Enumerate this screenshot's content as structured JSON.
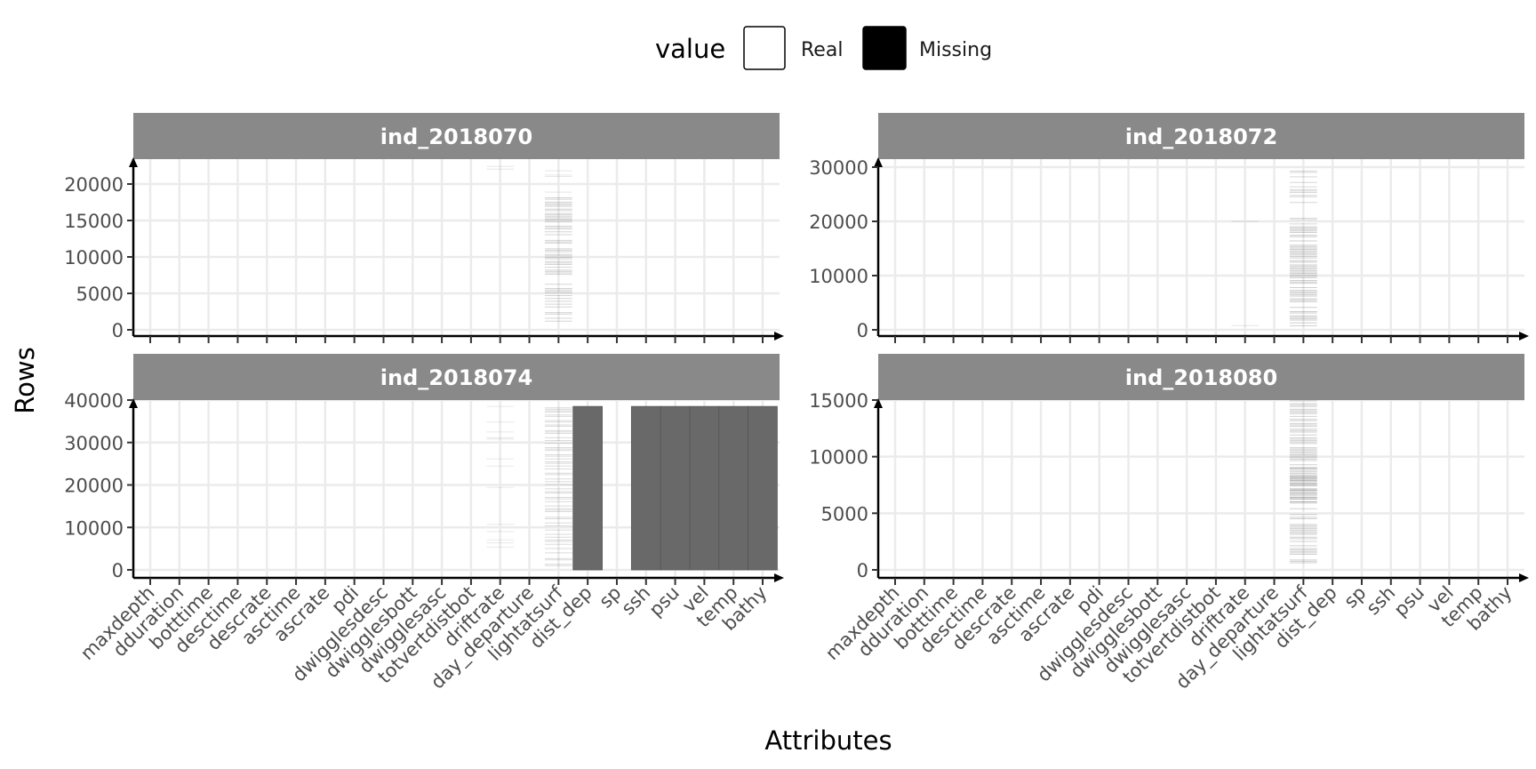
{
  "chart_data": {
    "type": "heatmap",
    "xlabel": "Attributes",
    "ylabel": "Rows",
    "legend": {
      "title": "value",
      "position": "top",
      "entries": [
        {
          "label": "Real",
          "color": "#ffffff"
        },
        {
          "label": "Missing",
          "color": "#000000"
        }
      ]
    },
    "attributes": [
      "maxdepth",
      "dduration",
      "botttime",
      "desctime",
      "descrate",
      "asctime",
      "ascrate",
      "pdi",
      "dwigglesdesc",
      "dwigglesbott",
      "dwigglesasc",
      "totvertdistbot",
      "driftrate",
      "day_departure",
      "lightatsurf",
      "dist_dep",
      "sp",
      "ssh",
      "psu",
      "vel",
      "temp",
      "bathy"
    ],
    "grid": true,
    "panels": [
      {
        "title": "ind_2018070",
        "rows": 22600,
        "ylim": [
          0,
          23000
        ],
        "yticks": [
          0,
          5000,
          10000,
          15000,
          20000
        ],
        "missing": [
          {
            "attribute": "driftrate",
            "ranges": [
              [
                21500,
                22600
              ]
            ],
            "intensity": 0.08
          },
          {
            "attribute": "lightatsurf",
            "ranges": [
              [
                1000,
                18300
              ]
            ],
            "intensity": 0.35
          },
          {
            "attribute": "lightatsurf",
            "ranges": [
              [
                18300,
                22600
              ]
            ],
            "intensity": 0.06
          }
        ]
      },
      {
        "title": "ind_2018072",
        "rows": 30000,
        "ylim": [
          0,
          30000
        ],
        "yticks": [
          0,
          10000,
          20000,
          30000
        ],
        "missing": [
          {
            "attribute": "driftrate",
            "ranges": [
              [
                0,
                1500
              ],
              [
                18800,
                20000
              ]
            ],
            "intensity": 0.06
          },
          {
            "attribute": "lightatsurf",
            "ranges": [
              [
                500,
                19000
              ]
            ],
            "intensity": 0.45
          },
          {
            "attribute": "lightatsurf",
            "ranges": [
              [
                19000,
                29800
              ]
            ],
            "intensity": 0.3
          }
        ]
      },
      {
        "title": "ind_2018074",
        "rows": 38500,
        "ylim": [
          0,
          40000
        ],
        "yticks": [
          0,
          10000,
          20000,
          30000,
          40000
        ],
        "missing": [
          {
            "attribute": "driftrate",
            "ranges": [
              [
                0,
                38500
              ]
            ],
            "intensity": 0.04
          },
          {
            "attribute": "lightatsurf",
            "ranges": [
              [
                0,
                38500
              ]
            ],
            "intensity": 0.25
          },
          {
            "attribute": "dist_dep",
            "ranges": [
              [
                0,
                38500
              ]
            ],
            "intensity": 1.0
          },
          {
            "attribute": "ssh",
            "ranges": [
              [
                0,
                38500
              ]
            ],
            "intensity": 1.0
          },
          {
            "attribute": "psu",
            "ranges": [
              [
                0,
                38500
              ]
            ],
            "intensity": 1.0
          },
          {
            "attribute": "vel",
            "ranges": [
              [
                0,
                38500
              ]
            ],
            "intensity": 1.0
          },
          {
            "attribute": "temp",
            "ranges": [
              [
                0,
                38500
              ]
            ],
            "intensity": 1.0
          },
          {
            "attribute": "bathy",
            "ranges": [
              [
                0,
                38500
              ]
            ],
            "intensity": 1.0
          }
        ]
      },
      {
        "title": "ind_2018080",
        "rows": 19000,
        "ylim": [
          0,
          19500
        ],
        "yticks": [
          0,
          5000,
          10000,
          15000
        ],
        "missing": [
          {
            "attribute": "driftrate",
            "ranges": [
              [
                18000,
                19000
              ]
            ],
            "intensity": 0.1
          },
          {
            "attribute": "lightatsurf",
            "ranges": [
              [
                500,
                18700
              ]
            ],
            "intensity": 0.4
          },
          {
            "attribute": "lightatsurf",
            "ranges": [
              [
                5500,
                9000
              ]
            ],
            "intensity": 0.35
          }
        ]
      }
    ]
  }
}
